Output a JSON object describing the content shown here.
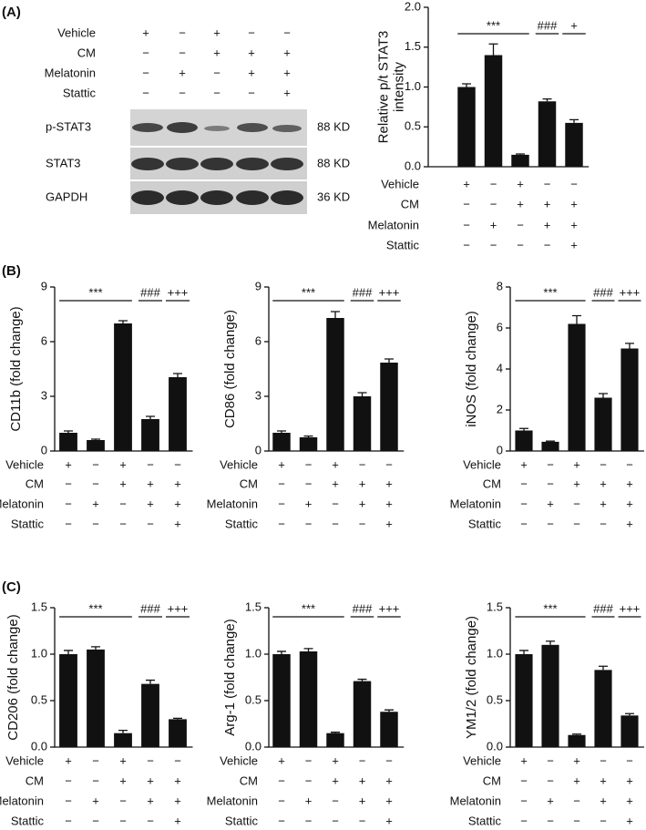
{
  "panel_labels": [
    "(A)",
    "(B)",
    "(C)"
  ],
  "conditions": [
    {
      "name": "Vehicle",
      "signs": [
        "+",
        "−",
        "+",
        "−",
        "−"
      ]
    },
    {
      "name": "CM",
      "signs": [
        "−",
        "−",
        "+",
        "+",
        "+"
      ]
    },
    {
      "name": "Melatonin",
      "signs": [
        "−",
        "+",
        "−",
        "+",
        "+"
      ]
    },
    {
      "name": "Stattic",
      "signs": [
        "−",
        "−",
        "−",
        "−",
        "+"
      ]
    }
  ],
  "blot": {
    "bands": [
      {
        "label": "p-STAT3",
        "size": "88 KD"
      },
      {
        "label": "STAT3",
        "size": "88 KD"
      },
      {
        "label": "GAPDH",
        "size": "36 KD"
      }
    ]
  },
  "chart_data": [
    {
      "type": "bar",
      "ylabel": [
        "Relative p/t STAT3",
        "intensity"
      ],
      "color": "#111111",
      "values": [
        1.0,
        1.4,
        0.15,
        0.82,
        0.55
      ],
      "errors": [
        0.04,
        0.14,
        0.01,
        0.03,
        0.04
      ],
      "ylim": [
        0,
        2
      ],
      "yticks": [
        {
          "value": 0,
          "label": "0.0"
        },
        {
          "value": 0.5,
          "label": "0.5"
        },
        {
          "value": 1,
          "label": "1.0"
        },
        {
          "value": 1.5,
          "label": "1.5"
        },
        {
          "value": 2,
          "label": "2.0"
        }
      ],
      "annotations": [
        "***",
        "###",
        "+"
      ]
    },
    {
      "type": "bar",
      "ylabel": [
        "CD11b (fold change)"
      ],
      "color": "#111111",
      "values": [
        1.0,
        0.6,
        7.0,
        1.75,
        4.05
      ],
      "errors": [
        0.1,
        0.05,
        0.15,
        0.15,
        0.2
      ],
      "ylim": [
        0,
        9
      ],
      "yticks": [
        0,
        3,
        6,
        9
      ],
      "annotations": [
        "***",
        "###",
        "+++"
      ]
    },
    {
      "type": "bar",
      "ylabel": [
        "CD86 (fold change)"
      ],
      "color": "#111111",
      "values": [
        1.0,
        0.75,
        7.3,
        3.0,
        4.85
      ],
      "errors": [
        0.1,
        0.07,
        0.35,
        0.2,
        0.2
      ],
      "ylim": [
        0,
        9
      ],
      "yticks": [
        0,
        3,
        6,
        9
      ],
      "annotations": [
        "***",
        "###",
        "+++"
      ]
    },
    {
      "type": "bar",
      "ylabel": [
        "iNOS (fold change)"
      ],
      "color": "#111111",
      "values": [
        1.0,
        0.45,
        6.2,
        2.6,
        5.0
      ],
      "errors": [
        0.1,
        0.03,
        0.4,
        0.2,
        0.25
      ],
      "ylim": [
        0,
        8
      ],
      "yticks": [
        0,
        2,
        4,
        6,
        8
      ],
      "annotations": [
        "***",
        "###",
        "+++"
      ]
    },
    {
      "type": "bar",
      "ylabel": [
        "CD206 (fold change)"
      ],
      "color": "#111111",
      "values": [
        1.0,
        1.05,
        0.15,
        0.68,
        0.3
      ],
      "errors": [
        0.04,
        0.03,
        0.03,
        0.04,
        0.01
      ],
      "ylim": [
        0,
        1.5
      ],
      "yticks": [
        {
          "value": 0,
          "label": "0.0"
        },
        {
          "value": 0.5,
          "label": "0.5"
        },
        {
          "value": 1,
          "label": "1.0"
        },
        {
          "value": 1.5,
          "label": "1.5"
        }
      ],
      "annotations": [
        "***",
        "###",
        "+++"
      ]
    },
    {
      "type": "bar",
      "ylabel": [
        "Arg-1 (fold change)"
      ],
      "color": "#111111",
      "values": [
        1.0,
        1.03,
        0.15,
        0.71,
        0.38
      ],
      "errors": [
        0.03,
        0.03,
        0.01,
        0.02,
        0.02
      ],
      "ylim": [
        0,
        1.5
      ],
      "yticks": [
        {
          "value": 0,
          "label": "0.0"
        },
        {
          "value": 0.5,
          "label": "0.5"
        },
        {
          "value": 1,
          "label": "1.0"
        },
        {
          "value": 1.5,
          "label": "1.5"
        }
      ],
      "annotations": [
        "***",
        "###",
        "+++"
      ]
    },
    {
      "type": "bar",
      "ylabel": [
        "YM1/2 (fold change)"
      ],
      "color": "#111111",
      "values": [
        1.0,
        1.1,
        0.13,
        0.83,
        0.34
      ],
      "errors": [
        0.04,
        0.04,
        0.01,
        0.04,
        0.02
      ],
      "ylim": [
        0,
        1.5
      ],
      "yticks": [
        {
          "value": 0,
          "label": "0.0"
        },
        {
          "value": 0.5,
          "label": "0.5"
        },
        {
          "value": 1,
          "label": "1.0"
        },
        {
          "value": 1.5,
          "label": "1.5"
        }
      ],
      "annotations": [
        "***",
        "###",
        "+++"
      ]
    }
  ]
}
